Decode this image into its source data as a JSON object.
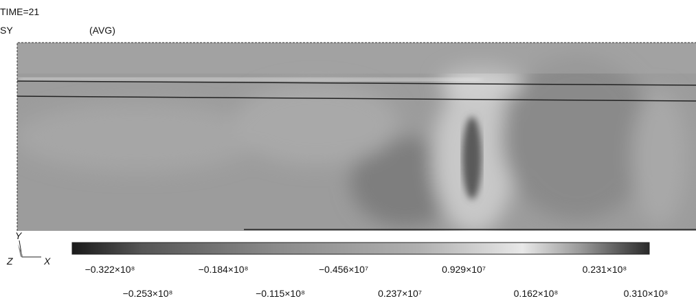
{
  "header": {
    "time": "TIME=21",
    "variable": "SY",
    "averaging": "(AVG)"
  },
  "axes": {
    "y": "Y",
    "z": "Z",
    "x": "X"
  },
  "colorbar": {
    "labels": [
      "−0.322×10⁸",
      "−0.253×10⁸",
      "−0.184×10⁸",
      "−0.115×10⁸",
      "−0.456×10⁷",
      "0.237×10⁷",
      "0.929×10⁷",
      "0.162×10⁸",
      "0.231×10⁸",
      "0.310×10⁸"
    ]
  }
}
